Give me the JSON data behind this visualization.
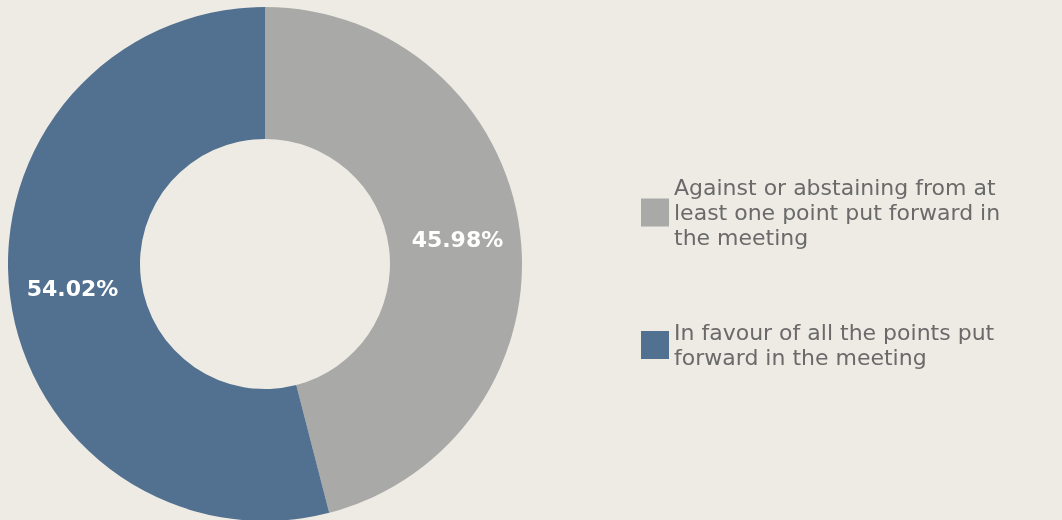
{
  "chart_data": {
    "type": "donut",
    "categories": [
      "Against or abstaining from at least one point put forward in the meeting",
      "In favour of all the points put forward in the meeting"
    ],
    "values": [
      45.98,
      54.02
    ],
    "colors": [
      "#a9a9a7",
      "#52708f"
    ],
    "value_labels": [
      "45.98%",
      "54.02%"
    ],
    "legend": "right"
  }
}
